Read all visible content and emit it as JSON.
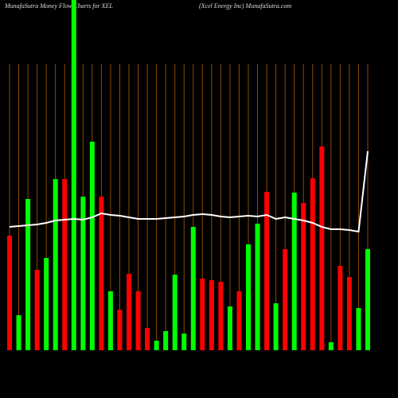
{
  "chart_data": {
    "type": "bar",
    "title": "MunafaSutra  Money Flow  Charts for XEL",
    "subtitle": "(Xcel Energy Inc) MunafaSutra.com",
    "categories": [
      null,
      null,
      null,
      null,
      null,
      null,
      null,
      null,
      null,
      null,
      null,
      null,
      null,
      null,
      null,
      null,
      null,
      null,
      null,
      null,
      null,
      null,
      null,
      null,
      null,
      null,
      null,
      null,
      null,
      null,
      null,
      null,
      null,
      null,
      null,
      null,
      null,
      null,
      null,
      null
    ],
    "values": [
      144,
      44,
      190,
      101,
      116,
      215,
      215,
      440,
      193,
      262,
      193,
      74,
      51,
      96,
      74,
      28,
      12,
      24,
      95,
      21,
      155,
      90,
      88,
      86,
      55,
      74,
      133,
      159,
      199,
      59,
      127,
      198,
      185,
      216,
      256,
      10,
      106,
      92,
      53,
      127
    ],
    "colors": [
      "#ff0000",
      "#00ff00",
      "#00ff00",
      "#ff0000",
      "#00ff00",
      "#00ff00",
      "#ff0000",
      "#00ff00",
      "#00ff00",
      "#00ff00",
      "#ff0000",
      "#00ff00",
      "#ff0000",
      "#ff0000",
      "#ff0000",
      "#ff0000",
      "#00ff00",
      "#00ff00",
      "#00ff00",
      "#00ff00",
      "#00ff00",
      "#ff0000",
      "#ff0000",
      "#ff0000",
      "#00ff00",
      "#ff0000",
      "#00ff00",
      "#00ff00",
      "#ff0000",
      "#00ff00",
      "#ff0000",
      "#00ff00",
      "#ff0000",
      "#ff0000",
      "#ff0000",
      "#00ff00",
      "#ff0000",
      "#ff0000",
      "#00ff00",
      "#00ff00"
    ],
    "line": {
      "color": "#ffffff",
      "values": [
        155,
        156,
        157,
        158,
        160,
        163,
        164,
        165,
        164,
        167,
        172,
        170,
        169,
        167,
        165,
        165,
        165,
        166,
        167,
        168,
        170,
        171,
        170,
        168,
        167,
        168,
        169,
        168,
        170,
        165,
        167,
        165,
        163,
        160,
        155,
        152,
        152,
        151,
        149,
        250
      ]
    },
    "ylim": [
      0,
      440
    ],
    "grid_color": "#8b4a00"
  }
}
